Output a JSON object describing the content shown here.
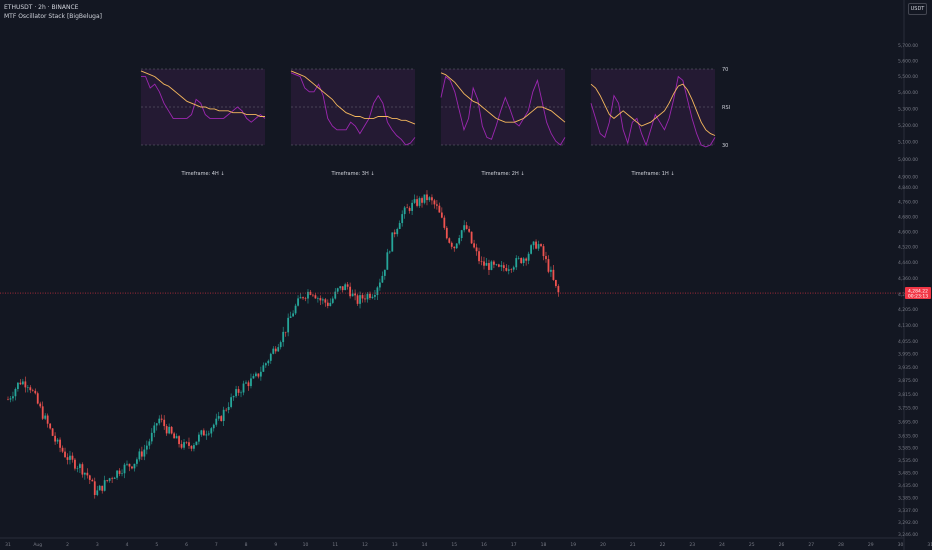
{
  "header": {
    "title": "ETHUSDT · 2h · BINANCE",
    "indicator": "MTF Oscillator Stack [BigBeluga]",
    "currency_button": "USDT"
  },
  "colors": {
    "background": "#131722",
    "up": "#26a69a",
    "down": "#ef5350",
    "osc_fill": "#241a33",
    "osc_line": "#9c27b0",
    "osc_ma": "#f5b85d",
    "price_line": "#f23645",
    "text": "#d1d4dc",
    "axis_text": "#787b86"
  },
  "chart_data": {
    "type": "candlestick",
    "symbol": "ETHUSDT",
    "interval": "2h",
    "exchange": "BINANCE",
    "y_axis": {
      "scale": "log",
      "range": [
        3246,
        5800
      ],
      "ticks": [
        "5,700.00",
        "5,600.00",
        "5,500.00",
        "5,400.00",
        "5,300.00",
        "5,200.00",
        "5,100.00",
        "5,000.00",
        "4,900.00",
        "4,840.00",
        "4,760.00",
        "4,680.00",
        "4,600.00",
        "4,520.00",
        "4,440.00",
        "4,360.00",
        "4,280.00",
        "4,205.00",
        "4,130.00",
        "4,055.00",
        "3,995.00",
        "3,935.00",
        "3,875.00",
        "3,815.00",
        "3,755.00",
        "3,695.00",
        "3,635.00",
        "3,585.00",
        "3,535.00",
        "3,485.00",
        "3,435.00",
        "3,385.00",
        "3,337.00",
        "3,292.00",
        "3,246.00"
      ]
    },
    "x_axis": {
      "ticks": [
        "31",
        "Aug",
        "2",
        "3",
        "4",
        "5",
        "6",
        "7",
        "8",
        "9",
        "10",
        "11",
        "12",
        "13",
        "14",
        "15",
        "16",
        "17",
        "18",
        "19",
        "20",
        "21",
        "22",
        "23",
        "24",
        "25",
        "26",
        "27",
        "28",
        "29",
        "30",
        "31"
      ]
    },
    "last_price": {
      "value": "4,284.22",
      "countdown": "00:23:13"
    },
    "path": [
      {
        "day": 0.0,
        "price": 3790
      },
      {
        "day": 0.4,
        "price": 3870
      },
      {
        "day": 0.7,
        "price": 3860
      },
      {
        "day": 1.0,
        "price": 3770
      },
      {
        "day": 1.3,
        "price": 3690
      },
      {
        "day": 1.6,
        "price": 3610
      },
      {
        "day": 1.9,
        "price": 3560
      },
      {
        "day": 2.1,
        "price": 3530
      },
      {
        "day": 2.4,
        "price": 3510
      },
      {
        "day": 2.7,
        "price": 3470
      },
      {
        "day": 2.95,
        "price": 3400
      },
      {
        "day": 3.1,
        "price": 3420
      },
      {
        "day": 3.4,
        "price": 3460
      },
      {
        "day": 3.8,
        "price": 3500
      },
      {
        "day": 4.2,
        "price": 3520
      },
      {
        "day": 4.6,
        "price": 3580
      },
      {
        "day": 4.9,
        "price": 3650
      },
      {
        "day": 5.05,
        "price": 3710
      },
      {
        "day": 5.3,
        "price": 3670
      },
      {
        "day": 5.6,
        "price": 3620
      },
      {
        "day": 5.9,
        "price": 3590
      },
      {
        "day": 6.2,
        "price": 3600
      },
      {
        "day": 6.5,
        "price": 3640
      },
      {
        "day": 6.8,
        "price": 3670
      },
      {
        "day": 7.1,
        "price": 3700
      },
      {
        "day": 7.4,
        "price": 3770
      },
      {
        "day": 7.7,
        "price": 3820
      },
      {
        "day": 8.0,
        "price": 3860
      },
      {
        "day": 8.3,
        "price": 3880
      },
      {
        "day": 8.7,
        "price": 3960
      },
      {
        "day": 9.0,
        "price": 4030
      },
      {
        "day": 9.3,
        "price": 4100
      },
      {
        "day": 9.6,
        "price": 4200
      },
      {
        "day": 9.9,
        "price": 4270
      },
      {
        "day": 10.2,
        "price": 4300
      },
      {
        "day": 10.5,
        "price": 4250
      },
      {
        "day": 10.8,
        "price": 4230
      },
      {
        "day": 11.1,
        "price": 4300
      },
      {
        "day": 11.4,
        "price": 4320
      },
      {
        "day": 11.7,
        "price": 4240
      },
      {
        "day": 12.0,
        "price": 4270
      },
      {
        "day": 12.3,
        "price": 4290
      },
      {
        "day": 12.6,
        "price": 4380
      },
      {
        "day": 12.9,
        "price": 4560
      },
      {
        "day": 13.2,
        "price": 4680
      },
      {
        "day": 13.5,
        "price": 4730
      },
      {
        "day": 13.8,
        "price": 4760
      },
      {
        "day": 14.1,
        "price": 4780
      },
      {
        "day": 14.4,
        "price": 4730
      },
      {
        "day": 14.6,
        "price": 4650
      },
      {
        "day": 14.8,
        "price": 4560
      },
      {
        "day": 15.0,
        "price": 4520
      },
      {
        "day": 15.2,
        "price": 4600
      },
      {
        "day": 15.4,
        "price": 4620
      },
      {
        "day": 15.6,
        "price": 4530
      },
      {
        "day": 15.9,
        "price": 4430
      },
      {
        "day": 16.2,
        "price": 4420
      },
      {
        "day": 16.5,
        "price": 4400
      },
      {
        "day": 16.8,
        "price": 4420
      },
      {
        "day": 17.1,
        "price": 4440
      },
      {
        "day": 17.4,
        "price": 4470
      },
      {
        "day": 17.6,
        "price": 4510
      },
      {
        "day": 17.8,
        "price": 4540
      },
      {
        "day": 18.0,
        "price": 4470
      },
      {
        "day": 18.2,
        "price": 4400
      },
      {
        "day": 18.4,
        "price": 4310
      },
      {
        "day": 18.5,
        "price": 4284
      }
    ],
    "panels": [
      {
        "timeframe": "Timeframe: 4H ↓",
        "rsi": [
          66,
          66,
          60,
          62,
          58,
          52,
          48,
          44,
          44,
          44,
          44,
          46,
          54,
          52,
          46,
          44,
          44,
          44,
          44,
          46,
          48,
          50,
          48,
          44,
          42,
          44,
          46,
          44
        ],
        "ma": [
          69,
          68,
          67,
          66,
          64,
          62,
          61,
          59,
          57,
          55,
          53,
          52,
          51,
          50,
          50,
          49,
          49,
          48,
          48,
          48,
          47,
          47,
          47,
          46,
          46,
          46,
          45,
          45
        ]
      },
      {
        "timeframe": "Timeframe: 3H ↓",
        "rsi": [
          68,
          67,
          66,
          60,
          58,
          58,
          62,
          56,
          44,
          40,
          38,
          38,
          38,
          42,
          40,
          36,
          40,
          44,
          52,
          56,
          52,
          42,
          38,
          35,
          33,
          30,
          31,
          34
        ],
        "ma": [
          69,
          68,
          67,
          66,
          64,
          62,
          60,
          58,
          56,
          54,
          51,
          49,
          47,
          46,
          45,
          45,
          44,
          44,
          44,
          45,
          45,
          45,
          44,
          44,
          43,
          43,
          42,
          41
        ]
      },
      {
        "timeframe": "Timeframe: 2H ↓",
        "rsi": [
          55,
          66,
          64,
          58,
          48,
          38,
          44,
          60,
          54,
          40,
          34,
          33,
          40,
          48,
          55,
          49,
          42,
          40,
          44,
          48,
          58,
          64,
          53,
          42,
          36,
          32,
          30,
          34
        ],
        "ma": [
          68,
          67,
          65,
          63,
          60,
          57,
          55,
          53,
          52,
          50,
          48,
          46,
          44,
          43,
          42,
          42,
          42,
          43,
          44,
          46,
          48,
          50,
          50,
          49,
          48,
          46,
          44,
          42
        ]
      },
      {
        "timeframe": "Timeframe: 1H ↓",
        "rsi": [
          52,
          44,
          36,
          34,
          42,
          56,
          52,
          38,
          31,
          42,
          44,
          36,
          30,
          38,
          46,
          42,
          38,
          44,
          54,
          66,
          64,
          54,
          44,
          36,
          30,
          29,
          30,
          34
        ],
        "ma": [
          62,
          60,
          56,
          51,
          46,
          44,
          46,
          48,
          46,
          44,
          42,
          40,
          41,
          42,
          44,
          46,
          48,
          52,
          57,
          61,
          62,
          59,
          54,
          48,
          42,
          38,
          36,
          35
        ]
      }
    ],
    "osc_levels": [
      "70",
      "RSI",
      "30"
    ]
  }
}
